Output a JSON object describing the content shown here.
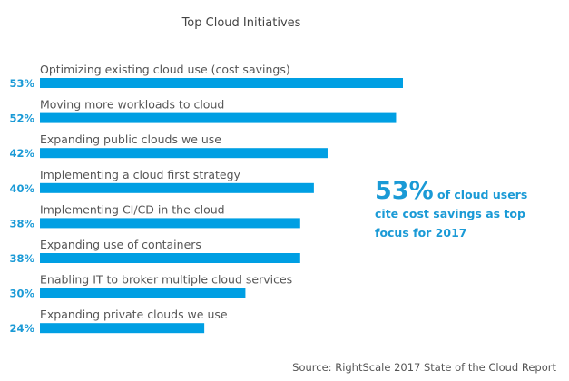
{
  "chart_data": {
    "type": "bar",
    "orientation": "horizontal",
    "title": "Top Cloud Initiatives",
    "categories": [
      "Optimizing existing cloud use (cost savings)",
      "Moving more workloads to cloud",
      "Expanding public clouds we use",
      "Implementing a cloud first strategy",
      "Implementing CI/CD in the cloud",
      "Expanding use of containers",
      "Enabling IT to broker multiple cloud services",
      "Expanding private clouds we use"
    ],
    "values": [
      53,
      52,
      42,
      40,
      38,
      38,
      30,
      24
    ],
    "value_labels": [
      "53%",
      "52%",
      "42%",
      "40%",
      "38%",
      "38%",
      "30%",
      "24%"
    ],
    "xlim": [
      0,
      53
    ],
    "grid": false,
    "bar_color": "#009fe3",
    "annotation": {
      "big": "53%",
      "line1": " of cloud users",
      "line2": "cite cost savings as top",
      "line3": "focus for 2017"
    },
    "source": "Source: RightScale 2017 State of the Cloud Report"
  }
}
